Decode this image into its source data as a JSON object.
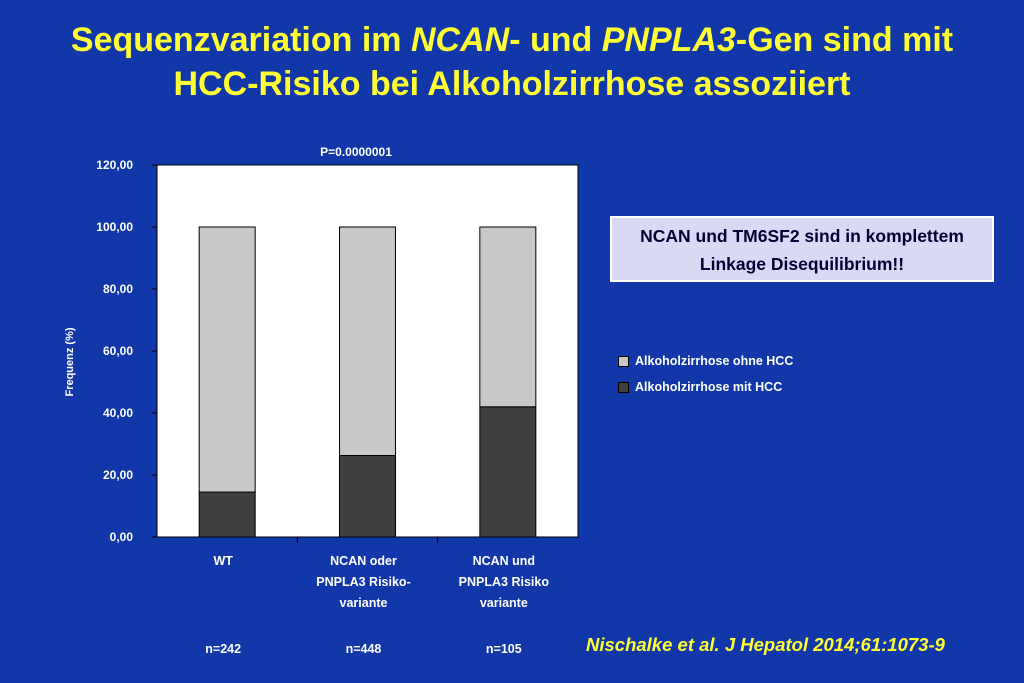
{
  "title": {
    "line1_a": "Sequenzvariation im ",
    "line1_gene1": "NCAN",
    "line1_b": "- und ",
    "line1_gene2": "PNPLA3",
    "line1_c": "-Gen sind mit",
    "line2": "HCC-Risiko bei Alkoholzirrhose assoziiert"
  },
  "note": {
    "line1": "NCAN und TM6SF2 sind in komplettem",
    "line2": "Linkage Disequilibrium!!"
  },
  "citation": "Nischalke et al. J Hepatol 2014;61:1073-9",
  "colors": {
    "background": "#1237a8",
    "title": "#ffff33",
    "without_hcc": "#c8c8c8",
    "with_hcc": "#404040"
  },
  "chart_data": {
    "type": "bar",
    "stacked": true,
    "annotation": "P=0.0000001",
    "ylabel": "Frequenz (%)",
    "ylim": [
      0,
      120
    ],
    "yticks": [
      "0,00",
      "20,00",
      "40,00",
      "60,00",
      "80,00",
      "100,00",
      "120,00"
    ],
    "categories": [
      [
        "WT"
      ],
      [
        "NCAN oder",
        "PNPLA3 Risiko-",
        "variante"
      ],
      [
        "NCAN und",
        "PNPLA3 Risiko",
        "variante"
      ]
    ],
    "n_labels": [
      "n=242",
      "n=448",
      "n=105"
    ],
    "legend_position": "right",
    "series": [
      {
        "name": "Alkoholzirrhose mit HCC",
        "color": "#404040",
        "values": [
          14.5,
          26.3,
          42.0
        ]
      },
      {
        "name": "Alkoholzirrhose ohne HCC",
        "color": "#c8c8c8",
        "values": [
          85.5,
          73.7,
          58.0
        ]
      }
    ]
  }
}
